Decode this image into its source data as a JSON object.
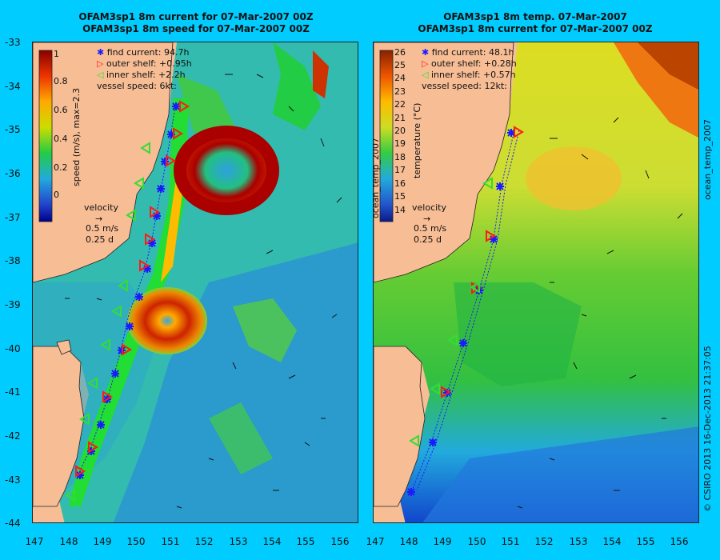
{
  "left_panel": {
    "title_line1": "OFAM3sp1 8m current for 07-Mar-2007 00Z",
    "title_line2": "OFAM3sp1 8m speed for 07-Mar-2007 00Z",
    "colorbar_label": "speed (m/s), max=2.3",
    "colorbar_ticks": [
      "1",
      "0.8",
      "0.6",
      "0.4",
      "0.2",
      "0"
    ],
    "legend": {
      "find": "find current: 94.7h",
      "outer": "outer shelf: +0.95h",
      "inner": "inner shelf: +2.2h",
      "vessel": "vessel speed: 6kt:"
    },
    "velocity_label": "velocity",
    "velocity_scale": "0.5 m/s",
    "velocity_time": "0.25 d"
  },
  "right_panel": {
    "title_line1": "OFAM3sp1 8m temp. 07-Mar-2007",
    "title_line2": "OFAM3sp1 8m current for 07-Mar-2007 00Z",
    "colorbar_label": "temperature (°C)",
    "colorbar_side_label": "ocean_temp_2007",
    "colorbar_ticks": [
      "26",
      "25",
      "24",
      "23",
      "22",
      "21",
      "20",
      "19",
      "18",
      "17",
      "16",
      "15",
      "14"
    ],
    "legend": {
      "find": "find current: 48.1h",
      "outer": "outer shelf: +0.28h",
      "inner": "inner shelf: +0.57h",
      "vessel": "vessel speed: 12kt:"
    },
    "velocity_label": "velocity",
    "velocity_scale": "0.5 m/s",
    "velocity_time": "0.25 d",
    "right_side_label": "ocean_temp_2007"
  },
  "y_ticks": [
    "-33",
    "-34",
    "-35",
    "-36",
    "-37",
    "-38",
    "-39",
    "-40",
    "-41",
    "-42",
    "-43",
    "-44"
  ],
  "x_ticks": [
    "147",
    "148",
    "149",
    "150",
    "151",
    "152",
    "153",
    "154",
    "155",
    "156"
  ],
  "footer_credit": "© CSIRO 2013   16-Dec-2013 21:37:05",
  "colors": {
    "background": "#00ccff",
    "land": "#f7bd95",
    "find_marker": "#1a1aff",
    "outer_marker": "#ff1a1a",
    "inner_marker": "#33dd33"
  }
}
